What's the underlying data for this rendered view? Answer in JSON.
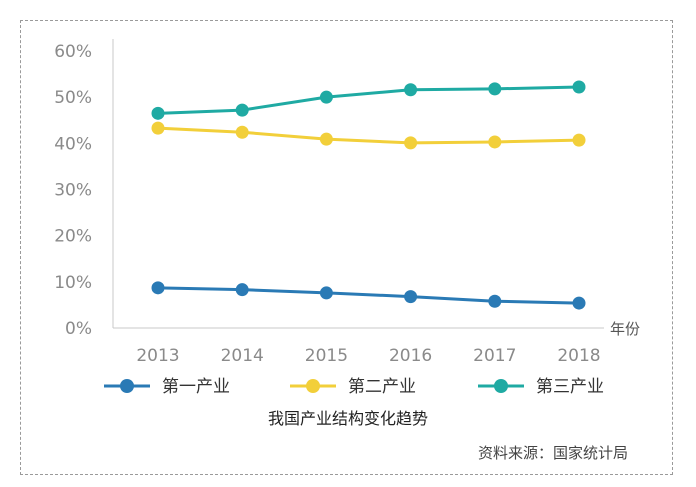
{
  "chart_data": {
    "type": "line",
    "title": "我国产业结构变化趋势",
    "source": "资料来源：国家统计局",
    "xlabel": "年份",
    "ylabel": "",
    "ylim": [
      0,
      60
    ],
    "y_ticks": [
      "0%",
      "10%",
      "20%",
      "30%",
      "40%",
      "50%",
      "60%"
    ],
    "y_tick_values": [
      0,
      10,
      20,
      30,
      40,
      50,
      60
    ],
    "categories": [
      "2013",
      "2014",
      "2015",
      "2016",
      "2017",
      "2018"
    ],
    "legend_position": "bottom",
    "grid": false,
    "series": [
      {
        "name": "第一产业",
        "color": "#2a7ab5",
        "values": [
          8.7,
          8.3,
          7.6,
          6.8,
          5.8,
          5.4
        ]
      },
      {
        "name": "第二产业",
        "color": "#f2cf3a",
        "values": [
          43.3,
          42.4,
          40.9,
          40.1,
          40.3,
          40.7
        ]
      },
      {
        "name": "第三产业",
        "color": "#1faaa3",
        "values": [
          46.5,
          47.2,
          50.0,
          51.6,
          51.8,
          52.2
        ]
      }
    ]
  }
}
